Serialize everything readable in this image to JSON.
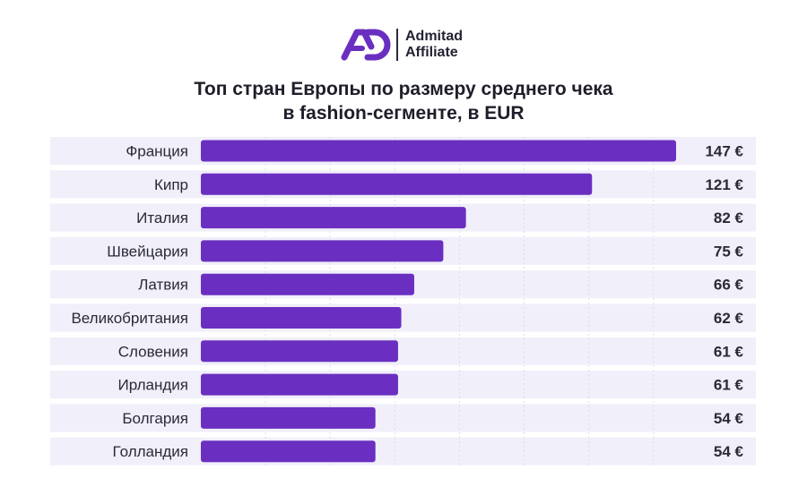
{
  "brand": {
    "name_line1": "Admitad",
    "name_line2": "Affiliate",
    "accent": "#6a2fc0"
  },
  "title_line1": "Топ стран Европы по размеру среднего чека",
  "title_line2": "в fashion-сегменте, в EUR",
  "colors": {
    "bar": "#6a2fc0",
    "row_bg": "#f0effa",
    "grid": "#dcdcec",
    "text": "#2a2a38"
  },
  "chart_data": {
    "type": "bar",
    "orientation": "horizontal",
    "title": "Топ стран Европы по размеру среднего чека в fashion-сегменте, в EUR",
    "categories": [
      "Франция",
      "Кипр",
      "Италия",
      "Швейцария",
      "Латвия",
      "Великобритания",
      "Словения",
      "Ирландия",
      "Болгария",
      "Голландия"
    ],
    "values": [
      147,
      121,
      82,
      75,
      66,
      62,
      61,
      61,
      54,
      54
    ],
    "value_labels": [
      "147 €",
      "121 €",
      "82 €",
      "75 €",
      "66 €",
      "62 €",
      "61 €",
      "61 €",
      "54 €",
      "54 €"
    ],
    "unit": "EUR",
    "xlim": [
      0,
      150
    ],
    "grid": true,
    "legend": "none"
  }
}
